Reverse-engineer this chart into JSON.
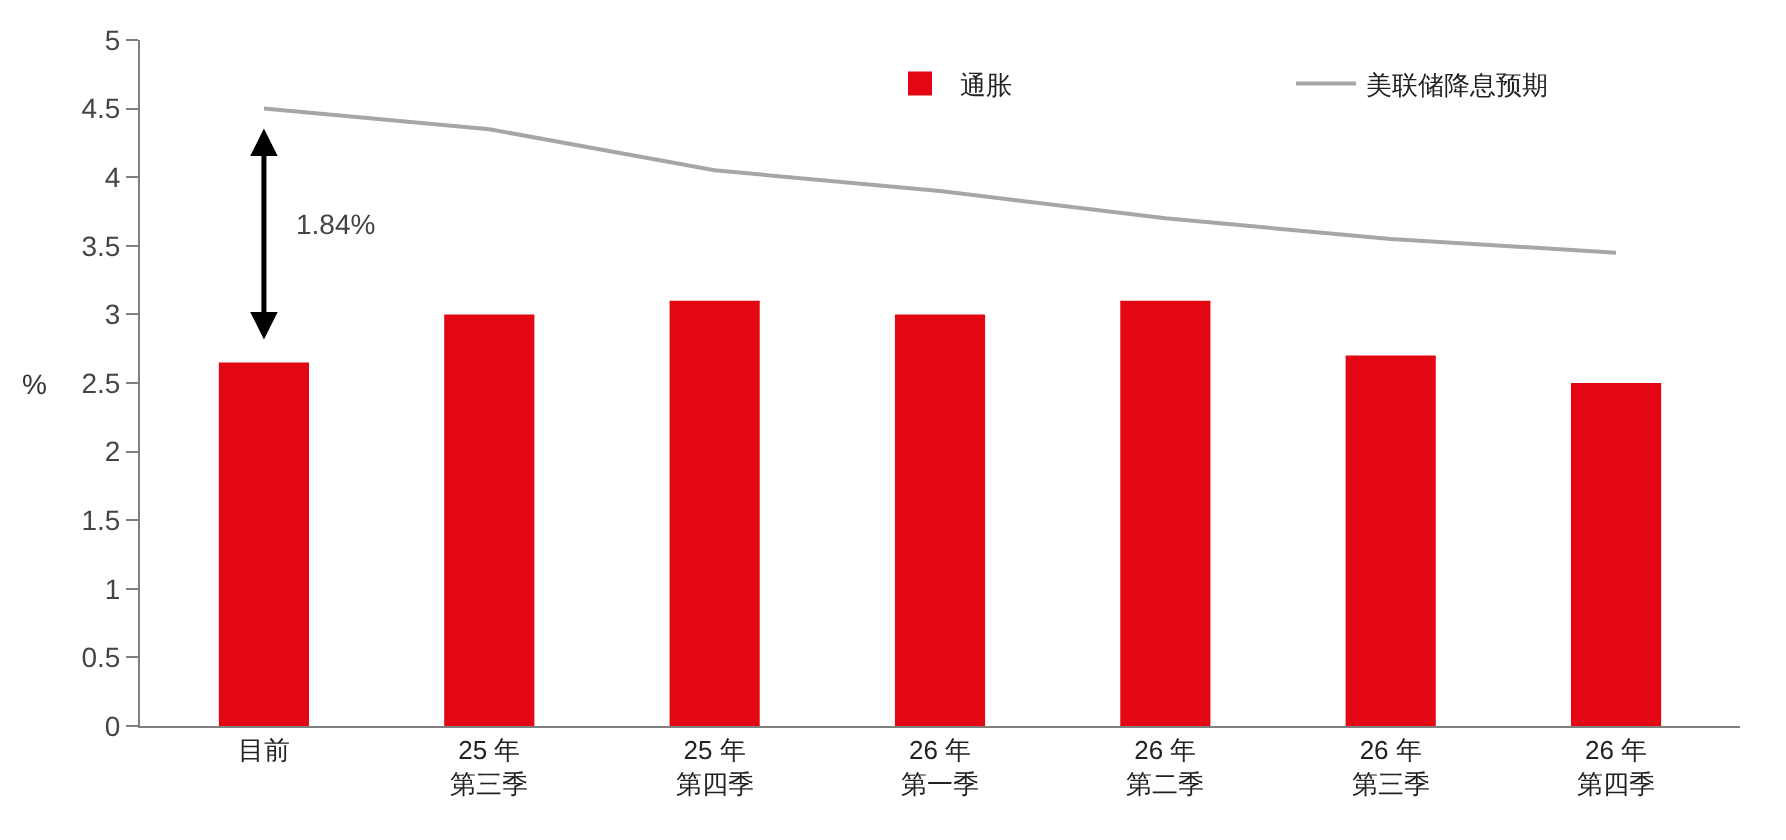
{
  "chart_data": {
    "type": "bar",
    "ylabel": "%",
    "categories": [
      "目前",
      "25 年第三季",
      "25 年第四季",
      "26 年第一季",
      "26 年第二季",
      "26 年第三季",
      "26 年第四季"
    ],
    "series": [
      {
        "name": "通胀",
        "color": "#e30613",
        "values": [
          2.65,
          3.0,
          3.1,
          3.0,
          3.1,
          2.7,
          2.5
        ]
      },
      {
        "name": "美联储降息预期",
        "type": "line",
        "color": "#a6a6a6",
        "values": [
          4.5,
          4.35,
          4.05,
          3.9,
          3.7,
          3.55,
          3.45
        ],
        "line_style": "solid"
      }
    ],
    "ylim": [
      0,
      5
    ],
    "yticks": [
      0,
      0.5,
      1,
      1.5,
      2,
      2.5,
      3,
      3.5,
      4,
      4.5,
      5
    ],
    "grid": false,
    "legend": "top right",
    "marker": "none",
    "annotations": [
      "1.84%"
    ]
  }
}
